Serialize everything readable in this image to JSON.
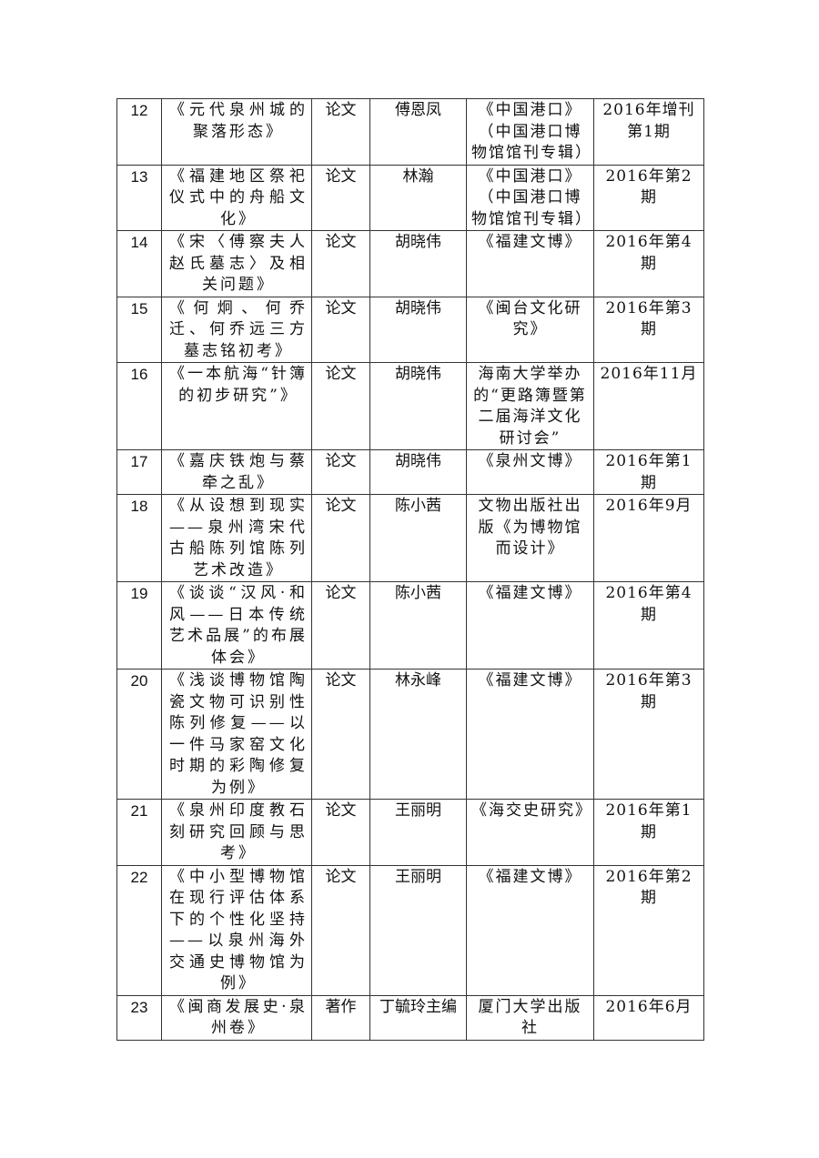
{
  "rows": [
    {
      "no": "12",
      "title": "《元代泉州城的聚落形态》",
      "type": "论文",
      "author": "傅恩凤",
      "publication": "《中国港口》（中国港口博物馆馆刊专辑）",
      "date": "2016年增刊第1期"
    },
    {
      "no": "13",
      "title": "《福建地区祭祀仪式中的舟船文化》",
      "type": "论文",
      "author": "林瀚",
      "publication": "《中国港口》（中国港口博物馆馆刊专辑）",
      "date": "2016年第2期"
    },
    {
      "no": "14",
      "title": "《宋〈傅察夫人赵氏墓志〉及相关问题》",
      "type": "论文",
      "author": "胡晓伟",
      "publication": "《福建文博》",
      "date": "2016年第4期"
    },
    {
      "no": "15",
      "title": "《何炯、何乔迁、何乔远三方墓志铭初考》",
      "type": "论文",
      "author": "胡晓伟",
      "publication": "《闽台文化研究》",
      "date": "2016年第3期"
    },
    {
      "no": "16",
      "title": "《一本航海“针簿的初步研究”》",
      "type": "论文",
      "author": "胡晓伟",
      "publication": "海南大学举办的“更路簿暨第二届海洋文化研讨会”",
      "date": "2016年11月"
    },
    {
      "no": "17",
      "title": "《嘉庆铁炮与蔡牵之乱》",
      "type": "论文",
      "author": "胡晓伟",
      "publication": "《泉州文博》",
      "date": "2016年第1期"
    },
    {
      "no": "18",
      "title": "《从设想到现实——泉州湾宋代古船陈列馆陈列艺术改造》",
      "type": "论文",
      "author": "陈小茜",
      "publication": "文物出版社出版《为博物馆而设计》",
      "date": "2016年9月"
    },
    {
      "no": "19",
      "title": "《谈谈“汉风·和风——日本传统艺术品展”的布展体会》",
      "type": "论文",
      "author": "陈小茜",
      "publication": "《福建文博》",
      "date": "2016年第4期"
    },
    {
      "no": "20",
      "title": "《浅谈博物馆陶瓷文物可识别性陈列修复——以一件马家窑文化时期的彩陶修复为例》",
      "type": "论文",
      "author": "林永峰",
      "publication": "《福建文博》",
      "date": "2016年第3期"
    },
    {
      "no": "21",
      "title": "《泉州印度教石刻研究回顾与思考》",
      "type": "论文",
      "author": "王丽明",
      "publication": "《海交史研究》",
      "date": "2016年第1期"
    },
    {
      "no": "22",
      "title": "《中小型博物馆在现行评估体系下的个性化坚持——以泉州海外交通史博物馆为例》",
      "type": "论文",
      "author": "王丽明",
      "publication": "《福建文博》",
      "date": "2016年第2期"
    },
    {
      "no": "23",
      "title": "《闽商发展史·泉州卷》",
      "type": "著作",
      "author": "丁毓玲主编",
      "publication": "厦门大学出版社",
      "date": "2016年6月"
    }
  ]
}
